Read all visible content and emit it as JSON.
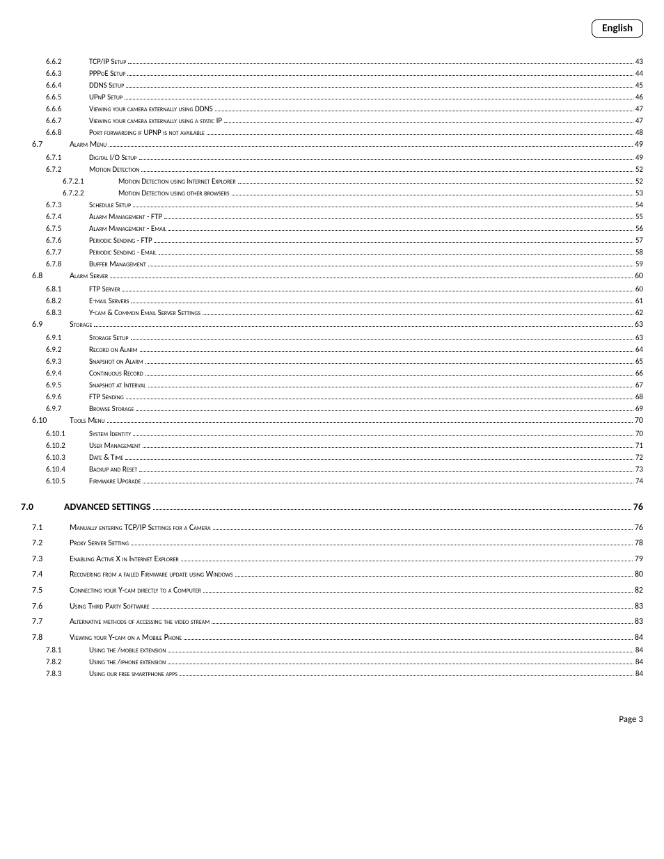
{
  "lang_badge": "English",
  "footer": "Page 3",
  "rows": [
    {
      "indent": 2,
      "lvl": "b",
      "num": "6.6.2",
      "title": "TCP/IP Setup",
      "page": "43",
      "gap": ""
    },
    {
      "indent": 2,
      "lvl": "b",
      "num": "6.6.3",
      "title": "PPPoE Setup",
      "page": "44",
      "gap": ""
    },
    {
      "indent": 2,
      "lvl": "b",
      "num": "6.6.4",
      "title": "DDNS Setup",
      "page": "45",
      "gap": ""
    },
    {
      "indent": 2,
      "lvl": "b",
      "num": "6.6.5",
      "title": "UPnP Setup",
      "page": "46",
      "gap": ""
    },
    {
      "indent": 2,
      "lvl": "b",
      "num": "6.6.6",
      "title": "Viewing your camera externally using DDNS",
      "page": "47",
      "gap": ""
    },
    {
      "indent": 2,
      "lvl": "b",
      "num": "6.6.7",
      "title": "Viewing your camera externally using a static IP",
      "page": "47",
      "gap": ""
    },
    {
      "indent": 2,
      "lvl": "b",
      "num": "6.6.8",
      "title": "Port forwarding if UPNP is not available",
      "page": "48",
      "gap": ""
    },
    {
      "indent": 1,
      "lvl": "a",
      "num": "6.7",
      "title": "Alarm Menu",
      "page": "49",
      "gap": ""
    },
    {
      "indent": 2,
      "lvl": "b",
      "num": "6.7.1",
      "title": "Digital I/O Setup",
      "page": "49",
      "gap": ""
    },
    {
      "indent": 2,
      "lvl": "b",
      "num": "6.7.2",
      "title": "Motion Detection",
      "page": "52",
      "gap": ""
    },
    {
      "indent": 3,
      "lvl": "c",
      "num": "6.7.2.1",
      "title": "Motion Detection using Internet Explorer",
      "page": "52",
      "gap": ""
    },
    {
      "indent": 3,
      "lvl": "c",
      "num": "6.7.2.2",
      "title": "Motion Detection using other browsers",
      "page": "53",
      "gap": ""
    },
    {
      "indent": 2,
      "lvl": "b",
      "num": "6.7.3",
      "title": "Schedule Setup",
      "page": "54",
      "gap": ""
    },
    {
      "indent": 2,
      "lvl": "b",
      "num": "6.7.4",
      "title": "Alarm Management - FTP",
      "page": "55",
      "gap": ""
    },
    {
      "indent": 2,
      "lvl": "b",
      "num": "6.7.5",
      "title": "Alarm Management - Email",
      "page": "56",
      "gap": ""
    },
    {
      "indent": 2,
      "lvl": "b",
      "num": "6.7.6",
      "title": "Periodic Sending - FTP",
      "page": "57",
      "gap": ""
    },
    {
      "indent": 2,
      "lvl": "b",
      "num": "6.7.7",
      "title": "Periodic Sending - Email",
      "page": "58",
      "gap": ""
    },
    {
      "indent": 2,
      "lvl": "b",
      "num": "6.7.8",
      "title": "Buffer Management",
      "page": "59",
      "gap": ""
    },
    {
      "indent": 1,
      "lvl": "a",
      "num": "6.8",
      "title": "Alarm Server",
      "page": "60",
      "gap": ""
    },
    {
      "indent": 2,
      "lvl": "b",
      "num": "6.8.1",
      "title": "FTP Server",
      "page": "60",
      "gap": ""
    },
    {
      "indent": 2,
      "lvl": "b",
      "num": "6.8.2",
      "title": "E-mail Servers",
      "page": "61",
      "gap": ""
    },
    {
      "indent": 2,
      "lvl": "b",
      "num": "6.8.3",
      "title": "Y-cam & Common Email Server Settings",
      "page": "62",
      "gap": ""
    },
    {
      "indent": 1,
      "lvl": "a",
      "num": "6.9",
      "title": "Storage",
      "page": "63",
      "gap": ""
    },
    {
      "indent": 2,
      "lvl": "b",
      "num": "6.9.1",
      "title": "Storage Setup",
      "page": "63",
      "gap": ""
    },
    {
      "indent": 2,
      "lvl": "b",
      "num": "6.9.2",
      "title": "Record on Alarm",
      "page": "64",
      "gap": ""
    },
    {
      "indent": 2,
      "lvl": "b",
      "num": "6.9.3",
      "title": "Snapshot on Alarm",
      "page": "65",
      "gap": ""
    },
    {
      "indent": 2,
      "lvl": "b",
      "num": "6.9.4",
      "title": "Continuous Record",
      "page": "66",
      "gap": ""
    },
    {
      "indent": 2,
      "lvl": "b",
      "num": "6.9.5",
      "title": "Snapshot at Interval",
      "page": "67",
      "gap": ""
    },
    {
      "indent": 2,
      "lvl": "b",
      "num": "6.9.6",
      "title": "FTP Sending",
      "page": "68",
      "gap": ""
    },
    {
      "indent": 2,
      "lvl": "b",
      "num": "6.9.7",
      "title": "Browse Storage",
      "page": "69",
      "gap": ""
    },
    {
      "indent": 1,
      "lvl": "a",
      "num": "6.10",
      "title": "Tools Menu",
      "page": "70",
      "gap": ""
    },
    {
      "indent": 2,
      "lvl": "b",
      "num": "6.10.1",
      "title": "System Identity",
      "page": "70",
      "gap": ""
    },
    {
      "indent": 2,
      "lvl": "b",
      "num": "6.10.2",
      "title": "User Management",
      "page": "71",
      "gap": ""
    },
    {
      "indent": 2,
      "lvl": "b",
      "num": "6.10.3",
      "title": "Date & Time",
      "page": "72",
      "gap": ""
    },
    {
      "indent": 2,
      "lvl": "b",
      "num": "6.10.4",
      "title": "Backup and Reset",
      "page": "73",
      "gap": ""
    },
    {
      "indent": 2,
      "lvl": "b",
      "num": "6.10.5",
      "title": "Firmware Upgrade",
      "page": "74",
      "gap": "lg"
    },
    {
      "indent": 0,
      "lvl": "h1",
      "num": "7.0",
      "title": "ADVANCED SETTINGS",
      "page": "76",
      "gap": "md"
    },
    {
      "indent": 1,
      "lvl": "a",
      "num": "7.1",
      "title": "Manually entering TCP/IP Settings for a Camera",
      "page": "76",
      "gap": "sm"
    },
    {
      "indent": 1,
      "lvl": "a",
      "num": "7.2",
      "title": "Proxy Server Setting",
      "page": "78",
      "gap": "sm"
    },
    {
      "indent": 1,
      "lvl": "a",
      "num": "7.3",
      "title": "Enabling Active X in Internet Explorer",
      "page": "79",
      "gap": "sm"
    },
    {
      "indent": 1,
      "lvl": "a",
      "num": "7.4",
      "title": "Recovering from a failed Firmware update using Windows",
      "page": "80",
      "gap": "sm"
    },
    {
      "indent": 1,
      "lvl": "a",
      "num": "7.5",
      "title": "Connecting your Y-cam directly to a Computer",
      "page": "82",
      "gap": "sm"
    },
    {
      "indent": 1,
      "lvl": "a",
      "num": "7.6",
      "title": "Using Third Party Software",
      "page": "83",
      "gap": "sm"
    },
    {
      "indent": 1,
      "lvl": "a",
      "num": "7.7",
      "title": "Alternative methods of accessing the video stream",
      "page": "83",
      "gap": "sm"
    },
    {
      "indent": 1,
      "lvl": "a",
      "num": "7.8",
      "title": "Viewing your Y-cam on a Mobile Phone",
      "page": "84",
      "gap": ""
    },
    {
      "indent": 2,
      "lvl": "b",
      "num": "7.8.1",
      "title": "Using the /mobile extension",
      "page": "84",
      "gap": ""
    },
    {
      "indent": 2,
      "lvl": "b",
      "num": "7.8.2",
      "title": "Using the /iphone extension",
      "page": "84",
      "gap": ""
    },
    {
      "indent": 2,
      "lvl": "b",
      "num": "7.8.3",
      "title": "Using our free smartphone apps",
      "page": "84",
      "gap": ""
    }
  ]
}
